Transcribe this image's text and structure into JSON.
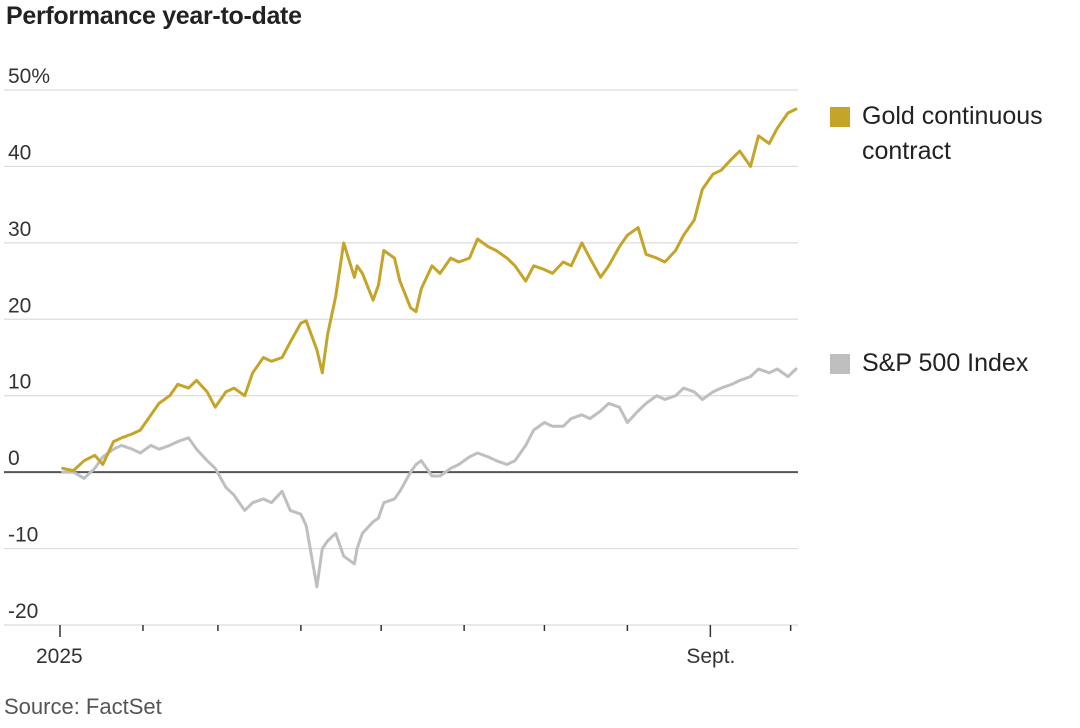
{
  "title": "Performance year-to-date",
  "source": "Source: FactSet",
  "colors": {
    "gold": "#c4a52a",
    "sp500": "#bfbfbf",
    "grid": "#dcdcdc",
    "zero": "#555555"
  },
  "chart_data": {
    "type": "line",
    "title": "Performance year-to-date",
    "y_unit": "%",
    "ylim": [
      -20,
      50
    ],
    "ytick_labels": [
      "50%",
      "40",
      "30",
      "20",
      "10",
      "0",
      "-10",
      "-20"
    ],
    "yticks": [
      50,
      40,
      30,
      20,
      10,
      0,
      -10,
      -20
    ],
    "xtick_labels": [
      "2025",
      "Sept."
    ],
    "x_start": "2025-01-01",
    "grid": true,
    "legend": "right",
    "series": [
      {
        "name": "Gold continuous contract",
        "x": [
          "2025-01-02",
          "2025-01-06",
          "2025-01-10",
          "2025-01-14",
          "2025-01-17",
          "2025-01-21",
          "2025-01-24",
          "2025-01-28",
          "2025-01-31",
          "2025-02-04",
          "2025-02-07",
          "2025-02-11",
          "2025-02-14",
          "2025-02-18",
          "2025-02-21",
          "2025-02-25",
          "2025-02-28",
          "2025-03-04",
          "2025-03-07",
          "2025-03-11",
          "2025-03-14",
          "2025-03-18",
          "2025-03-21",
          "2025-03-25",
          "2025-03-28",
          "2025-04-01",
          "2025-04-03",
          "2025-04-07",
          "2025-04-09",
          "2025-04-11",
          "2025-04-14",
          "2025-04-17",
          "2025-04-21",
          "2025-04-22",
          "2025-04-24",
          "2025-04-28",
          "2025-04-30",
          "2025-05-02",
          "2025-05-06",
          "2025-05-08",
          "2025-05-12",
          "2025-05-14",
          "2025-05-16",
          "2025-05-20",
          "2025-05-23",
          "2025-05-27",
          "2025-05-30",
          "2025-06-03",
          "2025-06-06",
          "2025-06-10",
          "2025-06-13",
          "2025-06-17",
          "2025-06-20",
          "2025-06-24",
          "2025-06-27",
          "2025-07-01",
          "2025-07-04",
          "2025-07-08",
          "2025-07-11",
          "2025-07-15",
          "2025-07-18",
          "2025-07-22",
          "2025-07-25",
          "2025-07-29",
          "2025-08-01",
          "2025-08-05",
          "2025-08-08",
          "2025-08-12",
          "2025-08-15",
          "2025-08-19",
          "2025-08-22",
          "2025-08-26",
          "2025-08-29",
          "2025-09-02",
          "2025-09-05",
          "2025-09-09",
          "2025-09-12",
          "2025-09-16",
          "2025-09-19",
          "2025-09-23",
          "2025-09-26",
          "2025-09-30",
          "2025-10-03"
        ],
        "values": [
          0.5,
          0.2,
          1.5,
          2.2,
          1.0,
          4.0,
          4.5,
          5.0,
          5.5,
          7.5,
          9.0,
          10.0,
          11.5,
          11.0,
          12.0,
          10.5,
          8.5,
          10.5,
          11.0,
          10.0,
          13.0,
          15.0,
          14.5,
          15.0,
          17.0,
          19.5,
          19.8,
          16.0,
          13.0,
          18.0,
          23.0,
          30.0,
          25.5,
          27.0,
          26.0,
          22.5,
          24.5,
          29.0,
          28.0,
          25.0,
          21.5,
          21.0,
          24.0,
          27.0,
          26.0,
          28.0,
          27.5,
          28.0,
          30.5,
          29.5,
          29.0,
          28.0,
          27.0,
          25.0,
          27.0,
          26.5,
          26.0,
          27.5,
          27.0,
          30.0,
          28.0,
          25.5,
          27.0,
          29.5,
          31.0,
          32.0,
          28.5,
          28.0,
          27.5,
          29.0,
          31.0,
          33.0,
          37.0,
          39.0,
          39.5,
          41.0,
          42.0,
          40.0,
          44.0,
          43.0,
          45.0,
          47.0,
          47.5
        ]
      },
      {
        "name": "S&P 500 Index",
        "x": [
          "2025-01-02",
          "2025-01-06",
          "2025-01-10",
          "2025-01-14",
          "2025-01-17",
          "2025-01-21",
          "2025-01-24",
          "2025-01-28",
          "2025-01-31",
          "2025-02-04",
          "2025-02-07",
          "2025-02-11",
          "2025-02-14",
          "2025-02-18",
          "2025-02-21",
          "2025-02-25",
          "2025-02-28",
          "2025-03-04",
          "2025-03-07",
          "2025-03-11",
          "2025-03-14",
          "2025-03-18",
          "2025-03-21",
          "2025-03-25",
          "2025-03-28",
          "2025-04-01",
          "2025-04-03",
          "2025-04-07",
          "2025-04-09",
          "2025-04-11",
          "2025-04-14",
          "2025-04-17",
          "2025-04-21",
          "2025-04-22",
          "2025-04-24",
          "2025-04-28",
          "2025-04-30",
          "2025-05-02",
          "2025-05-06",
          "2025-05-08",
          "2025-05-12",
          "2025-05-14",
          "2025-05-16",
          "2025-05-20",
          "2025-05-23",
          "2025-05-27",
          "2025-05-30",
          "2025-06-03",
          "2025-06-06",
          "2025-06-10",
          "2025-06-13",
          "2025-06-17",
          "2025-06-20",
          "2025-06-24",
          "2025-06-27",
          "2025-07-01",
          "2025-07-04",
          "2025-07-08",
          "2025-07-11",
          "2025-07-15",
          "2025-07-18",
          "2025-07-22",
          "2025-07-25",
          "2025-07-29",
          "2025-08-01",
          "2025-08-05",
          "2025-08-08",
          "2025-08-12",
          "2025-08-15",
          "2025-08-19",
          "2025-08-22",
          "2025-08-26",
          "2025-08-29",
          "2025-09-02",
          "2025-09-05",
          "2025-09-09",
          "2025-09-12",
          "2025-09-16",
          "2025-09-19",
          "2025-09-23",
          "2025-09-26",
          "2025-09-30",
          "2025-10-03"
        ],
        "values": [
          0.0,
          0.0,
          -0.8,
          0.5,
          2.0,
          3.0,
          3.5,
          3.0,
          2.5,
          3.5,
          3.0,
          3.5,
          4.0,
          4.5,
          3.0,
          1.5,
          0.5,
          -2.0,
          -3.0,
          -5.0,
          -4.0,
          -3.5,
          -4.0,
          -2.5,
          -5.0,
          -5.5,
          -7.0,
          -15.0,
          -10.0,
          -9.0,
          -8.0,
          -11.0,
          -12.0,
          -10.0,
          -8.0,
          -6.5,
          -6.0,
          -4.0,
          -3.5,
          -2.5,
          0.0,
          1.0,
          1.5,
          -0.5,
          -0.5,
          0.5,
          1.0,
          2.0,
          2.5,
          2.0,
          1.5,
          1.0,
          1.5,
          3.5,
          5.5,
          6.5,
          6.0,
          6.0,
          7.0,
          7.5,
          7.0,
          8.0,
          9.0,
          8.5,
          6.5,
          8.0,
          9.0,
          10.0,
          9.5,
          10.0,
          11.0,
          10.5,
          9.5,
          10.5,
          11.0,
          11.5,
          12.0,
          12.5,
          13.5,
          13.0,
          13.5,
          12.5,
          13.5
        ]
      }
    ]
  }
}
